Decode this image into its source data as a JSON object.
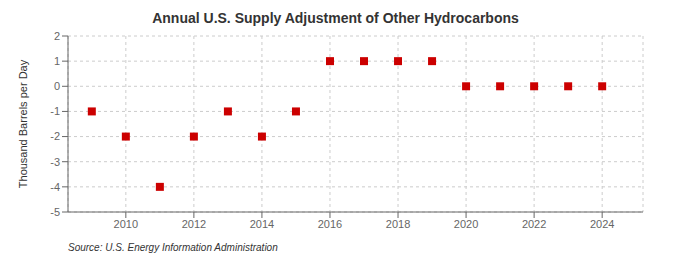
{
  "chart_data": {
    "type": "scatter",
    "title": "Annual U.S. Supply Adjustment of Other Hydrocarbons",
    "ylabel": "Thousand Barrels per Day",
    "annotation": "Source: U.S. Energy Information Administration",
    "x": [
      2009,
      2010,
      2011,
      2012,
      2013,
      2014,
      2015,
      2016,
      2017,
      2018,
      2019,
      2020,
      2021,
      2022,
      2023,
      2024
    ],
    "values": [
      -1,
      -2,
      -4,
      -2,
      -1,
      -2,
      -1,
      1,
      1,
      1,
      1,
      0,
      0,
      0,
      0,
      0
    ],
    "color": "#cc0000",
    "marker": "square",
    "xlim": [
      2008.3,
      2025.2
    ],
    "xticks": [
      2010,
      2012,
      2014,
      2016,
      2018,
      2020,
      2022,
      2024
    ],
    "ylim": [
      -5,
      2
    ],
    "yticks": [
      -5,
      -4,
      -3,
      -2,
      -1,
      0,
      1,
      2
    ],
    "grid": true
  }
}
